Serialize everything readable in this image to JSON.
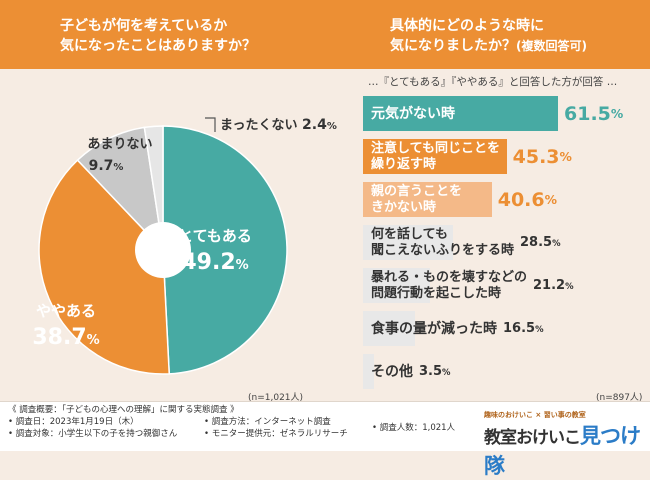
{
  "colors": {
    "teal": "#47aaa3",
    "orange": "#ec8f34",
    "lightOrange": "#f4b988",
    "gray": "#d8d8d8",
    "lightGray": "#ececec",
    "bg": "#f6ece3"
  },
  "left": {
    "question": [
      "子どもが何を考えているか",
      "気になったことはありますか？"
    ],
    "n_label": "(n=1,021人)"
  },
  "right": {
    "question_line1": "具体的にどのような時に",
    "question_line2": "気になりましたか？",
    "question_suffix": "(複数回答可)",
    "note": "…『とてもある』『ややある』と回答した方が回答 …",
    "n_label": "(n=897人)"
  },
  "chart_data": [
    {
      "type": "pie",
      "title": "子どもが何を考えているか気になったことはありますか？",
      "unit": "%",
      "slices": [
        {
          "label": "とてもある",
          "value": 49.2,
          "display": "49.2",
          "color": "#47aaa3"
        },
        {
          "label": "ややある",
          "value": 38.7,
          "display": "38.7",
          "color": "#ec8f34"
        },
        {
          "label": "あまりない",
          "value": 9.7,
          "display": "9.7",
          "color": "#c8c8c8"
        },
        {
          "label": "まったくない",
          "value": 2.4,
          "display": "2.4",
          "color": "#e6e6e6"
        }
      ]
    },
    {
      "type": "bar",
      "orientation": "horizontal",
      "title": "具体的にどのような時に気になりましたか？(複数回答可)",
      "unit": "%",
      "xlim": [
        0,
        61.5
      ],
      "categories": [
        [
          "元気がない時"
        ],
        [
          "注意しても同じことを",
          "繰り返す時"
        ],
        [
          "親の言うことを",
          "きかない時"
        ],
        [
          "何を話しても",
          "聞こえないふりをする時"
        ],
        [
          "暴れる・ものを壊すなどの",
          "問題行動を起こした時"
        ],
        [
          "食事の量が減った時"
        ],
        [
          "その他"
        ]
      ],
      "values": [
        61.5,
        45.3,
        40.6,
        28.5,
        21.2,
        16.5,
        3.5
      ],
      "display": [
        "61.5",
        "45.3",
        "40.6",
        "28.5",
        "21.2",
        "16.5",
        "3.5"
      ],
      "colors": [
        "#47aaa3",
        "#ec8f34",
        "#f4b988",
        "#e8e8e8",
        "#e8e8e8",
        "#e8e8e8",
        "#e8e8e8"
      ]
    }
  ],
  "footer": {
    "overview": "《 調査概要：「子どもの心理への理解」に関する実態調査 》",
    "date": "• 調査日：2023年1月19日（木）",
    "target": "• 調査対象：小学生以下の子を持つ親御さん",
    "method": "• 調査方法：インターネット調査",
    "monitor": "• モニター提供元：ゼネラルリサーチ",
    "count": "• 調査人数：1,021人",
    "brand_small": "趣味のおけいこ × 習い事の教室",
    "brand_main": "教室おけいこ",
    "brand_blue": "見つけ隊"
  }
}
